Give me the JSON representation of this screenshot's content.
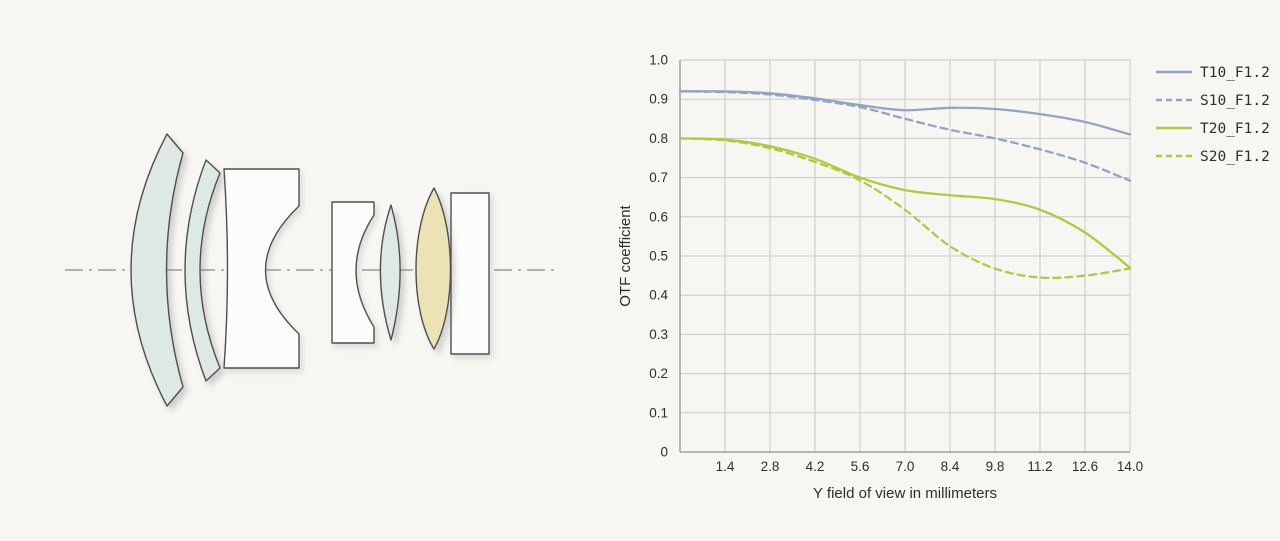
{
  "page": {
    "background": "#f7f6f3"
  },
  "lens_diagram": {
    "description": "Cross-section of a photographic lens: two front meniscus elements, a thick concave white element, an air gap with optical axis, a concave element, a thin biconvex element, a yellow biconvex element and a flat plate",
    "colors": {
      "glass_blue": "#dfe9e4",
      "glass_yellow": "#ebe3b6",
      "white_glass": "#fcfcfb",
      "outline": "#4f4f4f",
      "axis": "#9b9b9b"
    }
  },
  "chart_data": {
    "type": "line",
    "title": "",
    "xlabel": "Y field of view in millimeters",
    "ylabel": "OTF coefficient",
    "xlim": [
      0,
      14
    ],
    "ylim": [
      0,
      1.0
    ],
    "grid": true,
    "legend_position": "right-top",
    "colors": {
      "grid": "#c6cacc",
      "axis": "#8e9294",
      "text": "#2e2e2e",
      "blue": "#92a3c5",
      "green": "#b2c93e"
    },
    "x_ticks": [
      1.4,
      2.8,
      4.2,
      5.6,
      7.0,
      8.4,
      9.8,
      11.2,
      12.6,
      14.0
    ],
    "x_tick_labels": [
      "1.4",
      "2.8",
      "4.2",
      "5.6",
      "7.0",
      "8.4",
      "9.8",
      "11.2",
      "12.6",
      "14.0"
    ],
    "y_ticks": [
      0,
      0.1,
      0.2,
      0.3,
      0.4,
      0.5,
      0.6,
      0.7,
      0.8,
      0.9,
      1.0
    ],
    "y_tick_labels": [
      "0",
      "0.1",
      "0.2",
      "0.3",
      "0.4",
      "0.5",
      "0.6",
      "0.7",
      "0.8",
      "0.9",
      "1.0"
    ],
    "x": [
      0,
      1.4,
      2.8,
      4.2,
      5.6,
      7.0,
      8.4,
      9.8,
      11.2,
      12.6,
      14.0
    ],
    "series": [
      {
        "name": "T10_F1.2",
        "style": "solid",
        "color": "#92a3c5",
        "values": [
          0.92,
          0.92,
          0.915,
          0.902,
          0.885,
          0.872,
          0.878,
          0.875,
          0.862,
          0.842,
          0.81
        ]
      },
      {
        "name": "S10_F1.2",
        "style": "dashed",
        "color": "#92a3c5",
        "values": [
          0.92,
          0.918,
          0.912,
          0.898,
          0.88,
          0.85,
          0.822,
          0.8,
          0.772,
          0.738,
          0.692
        ]
      },
      {
        "name": "T20_F1.2",
        "style": "solid",
        "color": "#b2c93e",
        "values": [
          0.8,
          0.797,
          0.78,
          0.748,
          0.7,
          0.668,
          0.655,
          0.645,
          0.618,
          0.56,
          0.47
        ]
      },
      {
        "name": "S20_F1.2",
        "style": "dashed",
        "color": "#b2c93e",
        "values": [
          0.8,
          0.795,
          0.775,
          0.74,
          0.693,
          0.618,
          0.525,
          0.468,
          0.445,
          0.45,
          0.468
        ]
      }
    ]
  }
}
